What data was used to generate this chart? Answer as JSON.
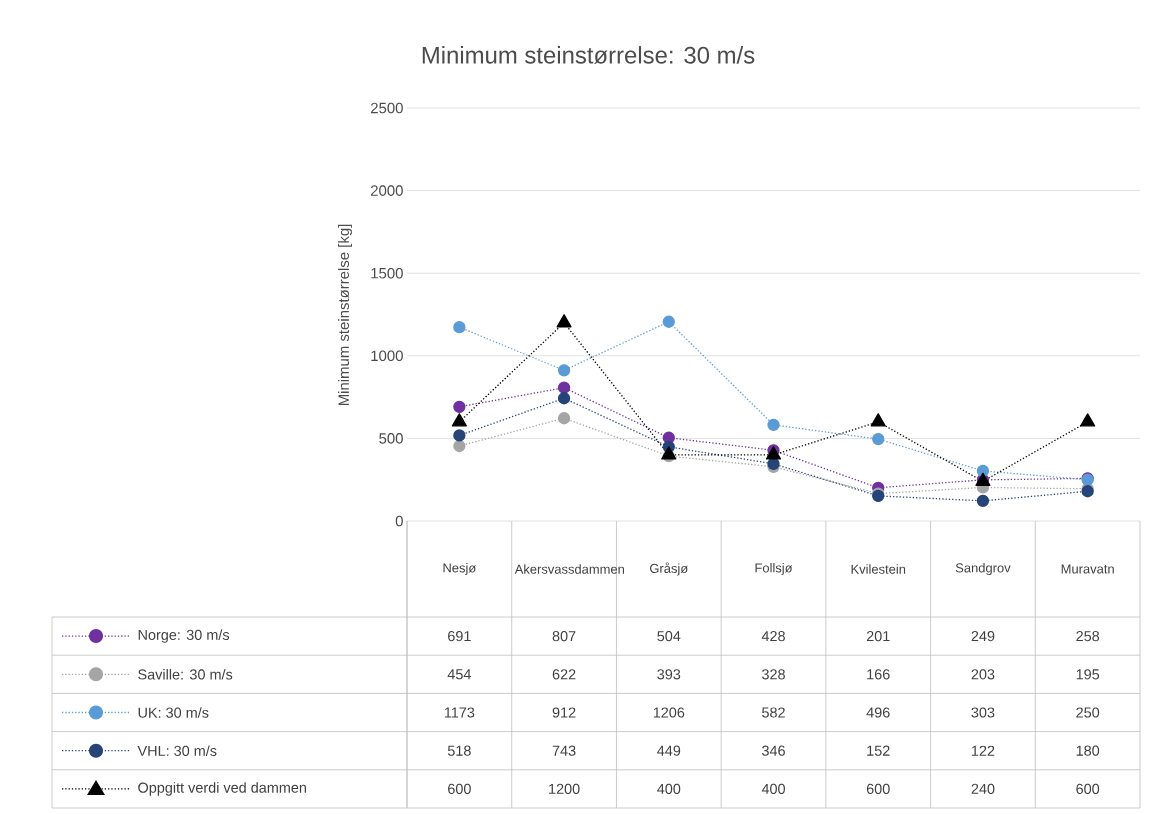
{
  "chart_data": {
    "type": "line",
    "title": "Minimum steinstørrelse: 30 m/s",
    "ylabel": "Minimum steinstørrelse [kg]",
    "categories": [
      "Nesjø",
      "Akersvassdammen",
      "Gråsjø",
      "Follsjø",
      "Kvilestein",
      "Sandgrov",
      "Muravatn"
    ],
    "series": [
      {
        "name": "Norge: 30 m/s",
        "color": "#7030a0",
        "marker": "circle",
        "line_style": "dotted",
        "values": [
          691,
          807,
          504,
          428,
          201,
          249,
          258
        ]
      },
      {
        "name": "Saville: 30 m/s",
        "color": "#a5a5a5",
        "marker": "circle",
        "line_style": "dotted",
        "values": [
          454,
          622,
          393,
          328,
          166,
          203,
          195
        ]
      },
      {
        "name": "UK: 30 m/s",
        "color": "#5b9bd5",
        "marker": "circle",
        "line_style": "dotted",
        "values": [
          1173,
          912,
          1206,
          582,
          496,
          303,
          250
        ]
      },
      {
        "name": "VHL: 30 m/s",
        "color": "#264478",
        "marker": "circle",
        "line_style": "dotted",
        "values": [
          518,
          743,
          449,
          346,
          152,
          122,
          180
        ]
      },
      {
        "name": "Oppgitt verdi ved dammen",
        "color": "#000000",
        "marker": "triangle",
        "line_style": "dotted",
        "values": [
          600,
          1200,
          400,
          400,
          600,
          240,
          600
        ]
      }
    ],
    "ylim": [
      0,
      2500
    ],
    "yticks": [
      0,
      500,
      1000,
      1500,
      2000,
      2500
    ],
    "grid": "y",
    "legend": "bottom",
    "data_labels": true
  }
}
